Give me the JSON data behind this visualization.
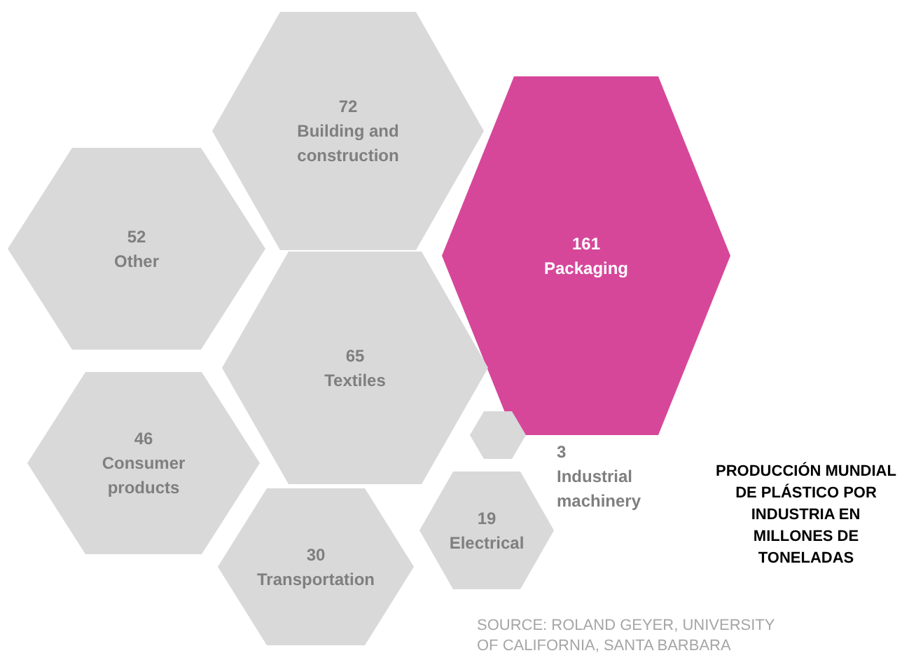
{
  "chart_data": {
    "type": "other",
    "title": "PRODUCCIÓN MUNDIAL DE PLÁSTICO POR INDUSTRIA EN MILLONES DE TONELADAS",
    "categories": [
      "Building and construction",
      "Other",
      "Packaging",
      "Textiles",
      "Consumer products",
      "Industrial machinery",
      "Transportation",
      "Electrical"
    ],
    "values": [
      72,
      52,
      161,
      65,
      46,
      3,
      30,
      19
    ],
    "data_labels": true,
    "colors": [
      "#d9d9d9",
      "#d9d9d9",
      "#d6479a",
      "#d9d9d9",
      "#d9d9d9",
      "#d9d9d9",
      "#d9d9d9",
      "#d9d9d9"
    ],
    "annotations": [
      "SOURCE: ROLAND GEYER, UNIVERSITY OF CALIFORNIA, SANTA BARBARA"
    ]
  }
}
